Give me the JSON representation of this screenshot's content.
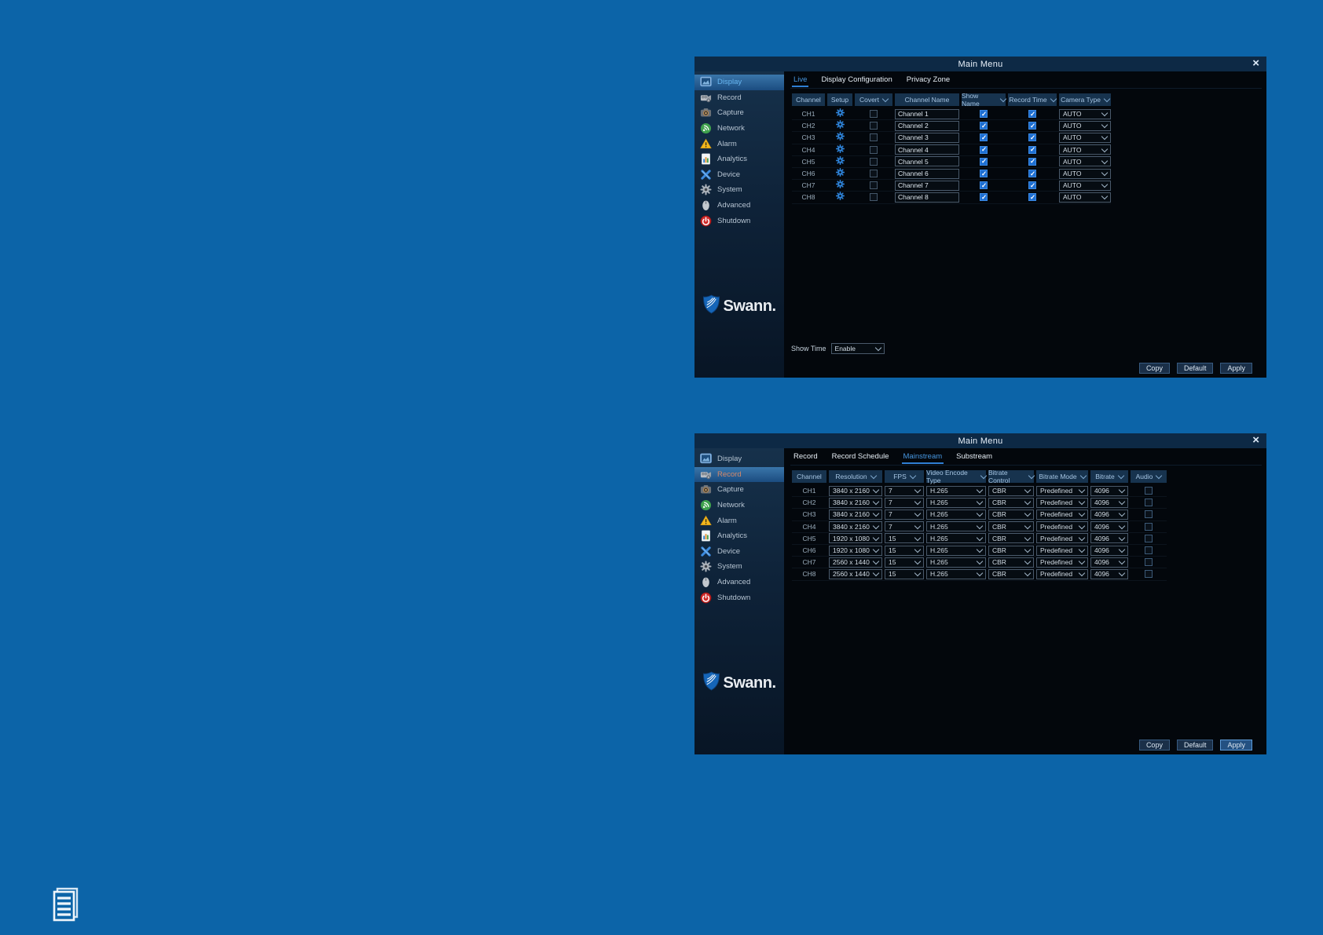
{
  "colors": {
    "page_background": "#0c64a8",
    "titlebar": "#0d2945",
    "accent_blue": "#4696e0",
    "checkbox_checked": "#1e6fd2",
    "alarm_yellow": "#f2b71e",
    "network_green": "#3fa14d",
    "shutdown_red": "#cf2a2a"
  },
  "panel_display": {
    "title": "Main Menu",
    "close_label": "×",
    "sidebar": {
      "items": [
        {
          "label": "Display",
          "icon": "display-icon",
          "active": true
        },
        {
          "label": "Record",
          "icon": "record-icon",
          "active": false
        },
        {
          "label": "Capture",
          "icon": "capture-icon",
          "active": false
        },
        {
          "label": "Network",
          "icon": "network-icon",
          "active": false
        },
        {
          "label": "Alarm",
          "icon": "alarm-icon",
          "active": false
        },
        {
          "label": "Analytics",
          "icon": "analytics-icon",
          "active": false
        },
        {
          "label": "Device",
          "icon": "device-icon",
          "active": false
        },
        {
          "label": "System",
          "icon": "system-icon",
          "active": false
        },
        {
          "label": "Advanced",
          "icon": "advanced-icon",
          "active": false
        },
        {
          "label": "Shutdown",
          "icon": "shutdown-icon",
          "active": false
        }
      ],
      "logo_text": "Swann."
    },
    "tabs": [
      {
        "label": "Live",
        "active": true
      },
      {
        "label": "Display Configuration",
        "active": false
      },
      {
        "label": "Privacy Zone",
        "active": false
      }
    ],
    "table": {
      "columns": [
        {
          "label": "Channel",
          "dropdown": false
        },
        {
          "label": "Setup",
          "dropdown": false
        },
        {
          "label": "Covert",
          "dropdown": true
        },
        {
          "label": "Channel Name",
          "dropdown": false
        },
        {
          "label": "Show Name",
          "dropdown": true
        },
        {
          "label": "Record Time",
          "dropdown": true
        },
        {
          "label": "Camera Type",
          "dropdown": true
        }
      ],
      "rows": [
        {
          "channel": "CH1",
          "covert": false,
          "channel_name": "Channel 1",
          "show_name": true,
          "record_time": true,
          "camera_type": "AUTO"
        },
        {
          "channel": "CH2",
          "covert": false,
          "channel_name": "Channel 2",
          "show_name": true,
          "record_time": true,
          "camera_type": "AUTO"
        },
        {
          "channel": "CH3",
          "covert": false,
          "channel_name": "Channel 3",
          "show_name": true,
          "record_time": true,
          "camera_type": "AUTO"
        },
        {
          "channel": "CH4",
          "covert": false,
          "channel_name": "Channel 4",
          "show_name": true,
          "record_time": true,
          "camera_type": "AUTO"
        },
        {
          "channel": "CH5",
          "covert": false,
          "channel_name": "Channel 5",
          "show_name": true,
          "record_time": true,
          "camera_type": "AUTO"
        },
        {
          "channel": "CH6",
          "covert": false,
          "channel_name": "Channel 6",
          "show_name": true,
          "record_time": true,
          "camera_type": "AUTO"
        },
        {
          "channel": "CH7",
          "covert": false,
          "channel_name": "Channel 7",
          "show_name": true,
          "record_time": true,
          "camera_type": "AUTO"
        },
        {
          "channel": "CH8",
          "covert": false,
          "channel_name": "Channel 8",
          "show_name": true,
          "record_time": true,
          "camera_type": "AUTO"
        }
      ]
    },
    "footer": {
      "show_time_label": "Show Time",
      "show_time_value": "Enable",
      "buttons": [
        {
          "label": "Copy",
          "primary": false
        },
        {
          "label": "Default",
          "primary": false
        },
        {
          "label": "Apply",
          "primary": false
        }
      ]
    }
  },
  "panel_record": {
    "title": "Main Menu",
    "close_label": "×",
    "sidebar": {
      "items": [
        {
          "label": "Display",
          "icon": "display-icon",
          "active": false
        },
        {
          "label": "Record",
          "icon": "record-icon",
          "active": true,
          "label_color": "#d4886a"
        },
        {
          "label": "Capture",
          "icon": "capture-icon",
          "active": false
        },
        {
          "label": "Network",
          "icon": "network-icon",
          "active": false
        },
        {
          "label": "Alarm",
          "icon": "alarm-icon",
          "active": false
        },
        {
          "label": "Analytics",
          "icon": "analytics-icon",
          "active": false
        },
        {
          "label": "Device",
          "icon": "device-icon",
          "active": false
        },
        {
          "label": "System",
          "icon": "system-icon",
          "active": false
        },
        {
          "label": "Advanced",
          "icon": "advanced-icon",
          "active": false
        },
        {
          "label": "Shutdown",
          "icon": "shutdown-icon",
          "active": false
        }
      ],
      "logo_text": "Swann."
    },
    "tabs": [
      {
        "label": "Record",
        "active": false
      },
      {
        "label": "Record Schedule",
        "active": false
      },
      {
        "label": "Mainstream",
        "active": true
      },
      {
        "label": "Substream",
        "active": false
      }
    ],
    "table": {
      "columns": [
        {
          "label": "Channel",
          "dropdown": false
        },
        {
          "label": "Resolution",
          "dropdown": true
        },
        {
          "label": "FPS",
          "dropdown": true
        },
        {
          "label": "Video Encode Type",
          "dropdown": true
        },
        {
          "label": "Bitrate Control",
          "dropdown": true
        },
        {
          "label": "Bitrate Mode",
          "dropdown": true
        },
        {
          "label": "Bitrate",
          "dropdown": true
        },
        {
          "label": "Audio",
          "dropdown": true
        }
      ],
      "rows": [
        {
          "channel": "CH1",
          "resolution": "3840 x 2160",
          "fps": "7",
          "video_encode_type": "H.265",
          "bitrate_control": "CBR",
          "bitrate_mode": "Predefined",
          "bitrate": "4096",
          "audio": false
        },
        {
          "channel": "CH2",
          "resolution": "3840 x 2160",
          "fps": "7",
          "video_encode_type": "H.265",
          "bitrate_control": "CBR",
          "bitrate_mode": "Predefined",
          "bitrate": "4096",
          "audio": false
        },
        {
          "channel": "CH3",
          "resolution": "3840 x 2160",
          "fps": "7",
          "video_encode_type": "H.265",
          "bitrate_control": "CBR",
          "bitrate_mode": "Predefined",
          "bitrate": "4096",
          "audio": false
        },
        {
          "channel": "CH4",
          "resolution": "3840 x 2160",
          "fps": "7",
          "video_encode_type": "H.265",
          "bitrate_control": "CBR",
          "bitrate_mode": "Predefined",
          "bitrate": "4096",
          "audio": false
        },
        {
          "channel": "CH5",
          "resolution": "1920 x 1080",
          "fps": "15",
          "video_encode_type": "H.265",
          "bitrate_control": "CBR",
          "bitrate_mode": "Predefined",
          "bitrate": "4096",
          "audio": false
        },
        {
          "channel": "CH6",
          "resolution": "1920 x 1080",
          "fps": "15",
          "video_encode_type": "H.265",
          "bitrate_control": "CBR",
          "bitrate_mode": "Predefined",
          "bitrate": "4096",
          "audio": false
        },
        {
          "channel": "CH7",
          "resolution": "2560 x 1440",
          "fps": "15",
          "video_encode_type": "H.265",
          "bitrate_control": "CBR",
          "bitrate_mode": "Predefined",
          "bitrate": "4096",
          "audio": false
        },
        {
          "channel": "CH8",
          "resolution": "2560 x 1440",
          "fps": "15",
          "video_encode_type": "H.265",
          "bitrate_control": "CBR",
          "bitrate_mode": "Predefined",
          "bitrate": "4096",
          "audio": false
        }
      ]
    },
    "footer": {
      "buttons": [
        {
          "label": "Copy",
          "primary": false
        },
        {
          "label": "Default",
          "primary": false
        },
        {
          "label": "Apply",
          "primary": true
        }
      ]
    }
  }
}
